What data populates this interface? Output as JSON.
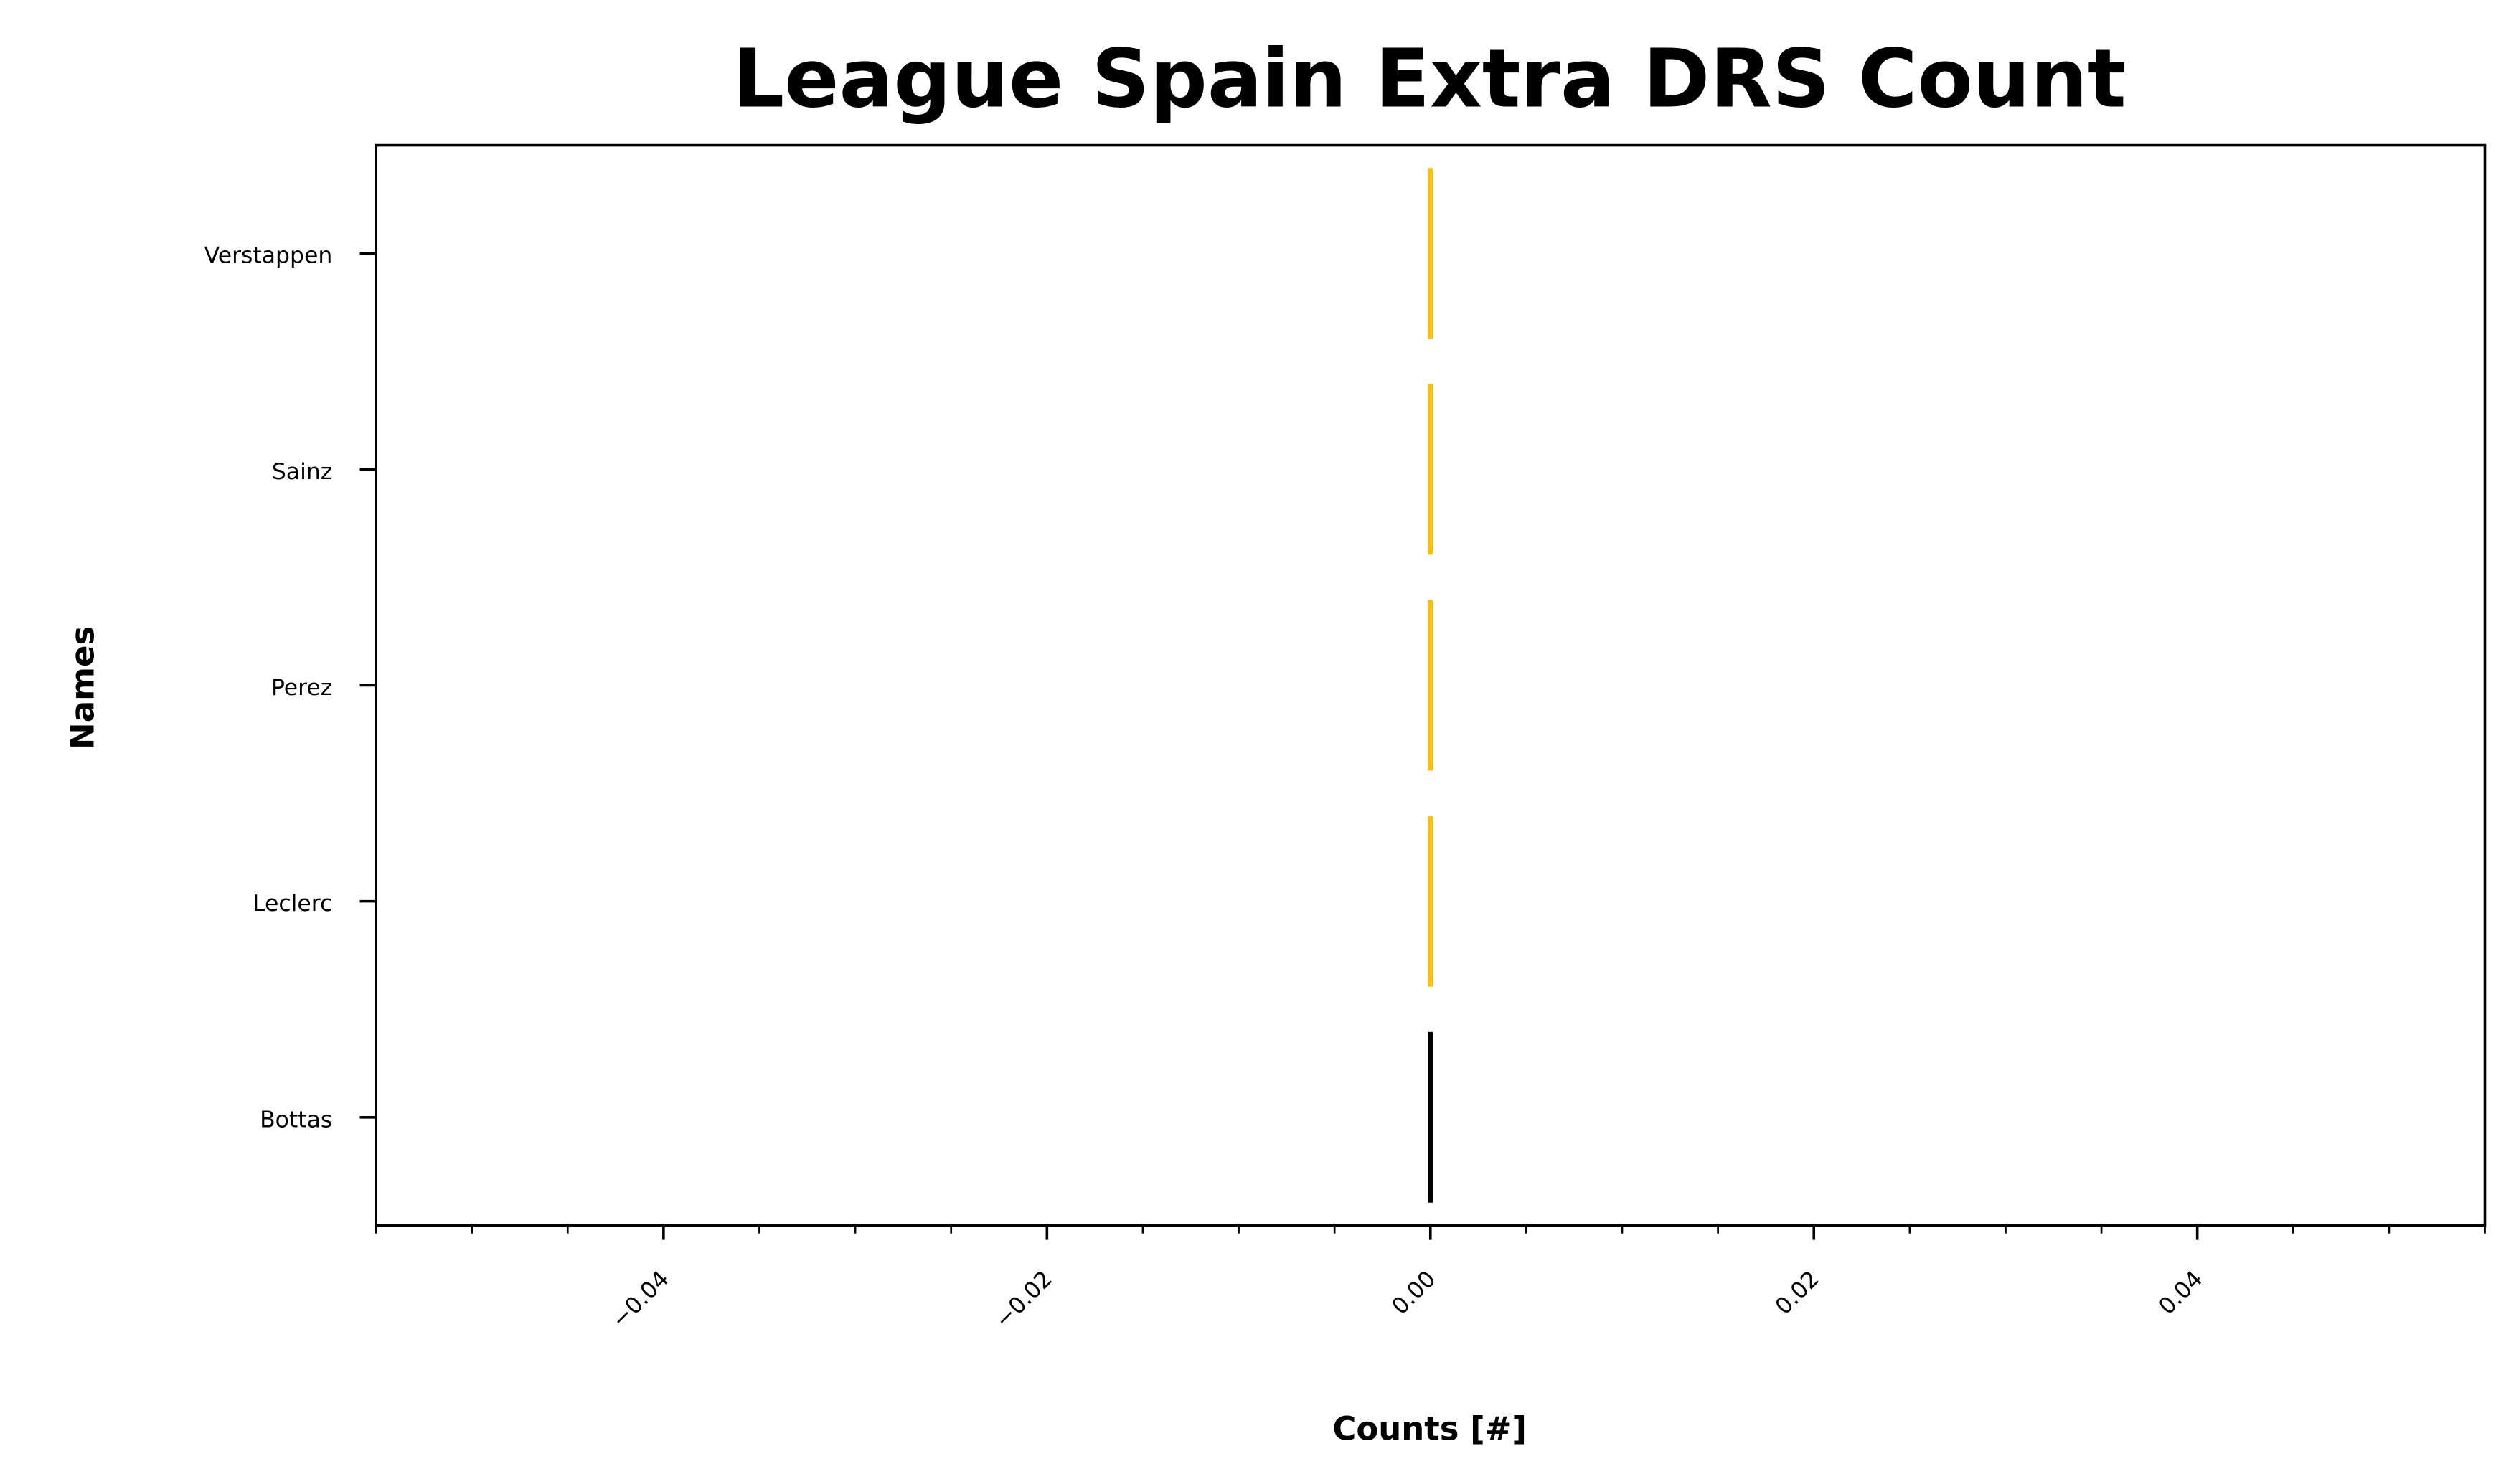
{
  "chart_data": {
    "type": "bar",
    "orientation": "horizontal",
    "title": "League Spain Extra DRS Count",
    "xlabel": "Counts [#]",
    "ylabel": "Names",
    "categories": [
      "Verstappen",
      "Sainz",
      "Perez",
      "Leclerc",
      "Bottas"
    ],
    "values": [
      0,
      0,
      0,
      0,
      0
    ],
    "bar_colors": [
      "#ffc000",
      "#ffc000",
      "#ffc000",
      "#ffc000",
      "#000000"
    ],
    "xlim": [
      -0.055,
      0.055
    ],
    "x_ticks": [
      -0.04,
      -0.02,
      0.0,
      0.02,
      0.04
    ],
    "x_tick_labels": [
      "−0.04",
      "−0.02",
      "0.00",
      "0.02",
      "0.04"
    ],
    "x_minor_tick_step": 0.005,
    "grid": false,
    "legend": "none"
  }
}
